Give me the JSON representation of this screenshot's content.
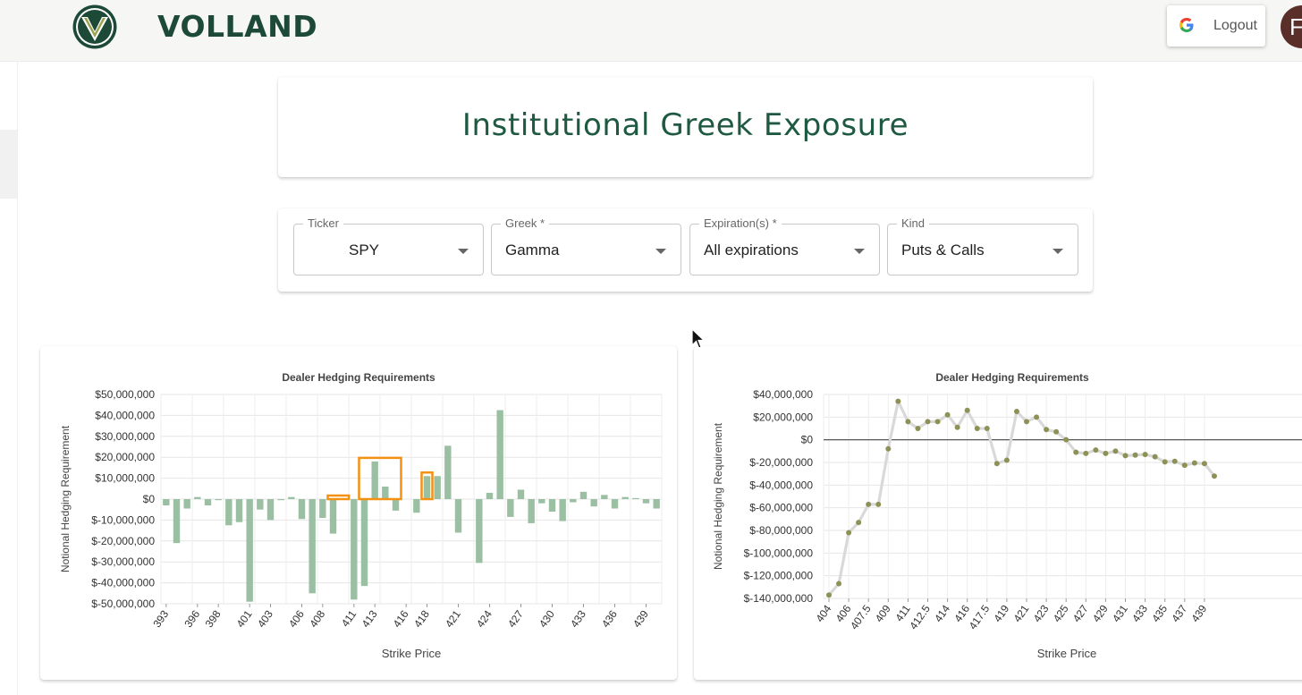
{
  "brand": {
    "name": "VOLLAND"
  },
  "header": {
    "logout_label": "Logout",
    "avatar_initial": "F"
  },
  "page": {
    "title": "Institutional Greek Exposure"
  },
  "filters": [
    {
      "label": "Ticker",
      "value": "SPY"
    },
    {
      "label": "Greek *",
      "value": "Gamma"
    },
    {
      "label": "Expiration(s) *",
      "value": "All expirations"
    },
    {
      "label": "Kind",
      "value": "Puts & Calls"
    }
  ],
  "colors": {
    "brand": "#1c4a36",
    "bar": "#9bbfa2",
    "highlight": "#f39112",
    "line": "#d9d9d9",
    "dot": "#8e9155"
  },
  "chart_data": [
    {
      "type": "bar",
      "title": "Dealer Hedging Requirements",
      "xlabel": "Strike Price",
      "ylabel": "Notional Hedging Requirement",
      "ylim": [
        -50000000,
        50000000
      ],
      "yticks": [
        "$50,000,000",
        "$40,000,000",
        "$30,000,000",
        "$20,000,000",
        "$10,000,000",
        "$0",
        "$-10,000,000",
        "$-20,000,000",
        "$-30,000,000",
        "$-40,000,000",
        "$-50,000,000"
      ],
      "grid": true,
      "categories": [
        393,
        394,
        395,
        396,
        397,
        398,
        399,
        400,
        401,
        402,
        403,
        404,
        405,
        406,
        407,
        408,
        409,
        410,
        411,
        412,
        413,
        414,
        415,
        416,
        417,
        418,
        419,
        420,
        421,
        422,
        423,
        424,
        425,
        426,
        427,
        428,
        429,
        430,
        431,
        432,
        433,
        434,
        435,
        436,
        437,
        438,
        439,
        440
      ],
      "tick_labels": [
        "393",
        "396",
        "398",
        "401",
        "403",
        "406",
        "408",
        "411",
        "413",
        "416",
        "418",
        "421",
        "424",
        "427",
        "430",
        "433",
        "436",
        "439"
      ],
      "tick_strikes": [
        393,
        396,
        398,
        401,
        403,
        406,
        408,
        411,
        413,
        416,
        418,
        421,
        424,
        427,
        430,
        433,
        436,
        439
      ],
      "values": [
        -3000000,
        -21000000,
        -4500000,
        1000000,
        -3000000,
        -500000,
        -12500000,
        -11000000,
        -49000000,
        -5000000,
        -10000000,
        -500000,
        1000000,
        -9500000,
        -45000000,
        -9000000,
        -16500000,
        0,
        -48000000,
        -41500000,
        18000000,
        6000000,
        -5500000,
        0,
        -6500000,
        11000000,
        11000000,
        25500000,
        -16000000,
        0,
        -30500000,
        3000000,
        42500000,
        -8500000,
        4500000,
        -11500000,
        -2000000,
        -6000000,
        -10500000,
        -1500000,
        3500000,
        -3500000,
        2000000,
        -4500000,
        1000000,
        500000,
        -2000000,
        -4500000
      ],
      "highlight_ranges": [
        [
          409,
          410
        ],
        [
          412,
          415
        ],
        [
          418,
          418
        ]
      ]
    },
    {
      "type": "line",
      "title": "Dealer Hedging Requirements",
      "xlabel": "Strike Price",
      "ylabel": "Notional Hedging Requirement",
      "ylim": [
        -140000000,
        40000000
      ],
      "yticks": [
        "$40,000,000",
        "$20,000,000",
        "$0",
        "$-20,000,000",
        "$-40,000,000",
        "$-60,000,000",
        "$-80,000,000",
        "$-100,000,000",
        "$-120,000,000",
        "$-140,000,000"
      ],
      "grid": true,
      "tick_labels": [
        "404",
        "406",
        "407.5",
        "409",
        "411",
        "412.5",
        "414",
        "416",
        "417.5",
        "419",
        "421",
        "423",
        "425",
        "427",
        "429",
        "431",
        "433",
        "435",
        "437",
        "439"
      ],
      "values": [
        -137000000,
        -127000000,
        -82000000,
        -73000000,
        -57000000,
        -57000000,
        -8000000,
        34000000,
        16000000,
        10000000,
        16000000,
        16000000,
        22000000,
        11000000,
        26000000,
        10000000,
        10000000,
        -21000000,
        -18000000,
        25000000,
        16000000,
        20000000,
        9000000,
        7000000,
        0,
        -11000000,
        -12000000,
        -9000000,
        -12000000,
        -10000000,
        -14000000,
        -13500000,
        -13000000,
        -15000000,
        -19500000,
        -19000000,
        -22500000,
        -20500000,
        -21000000,
        -32000000
      ]
    }
  ]
}
